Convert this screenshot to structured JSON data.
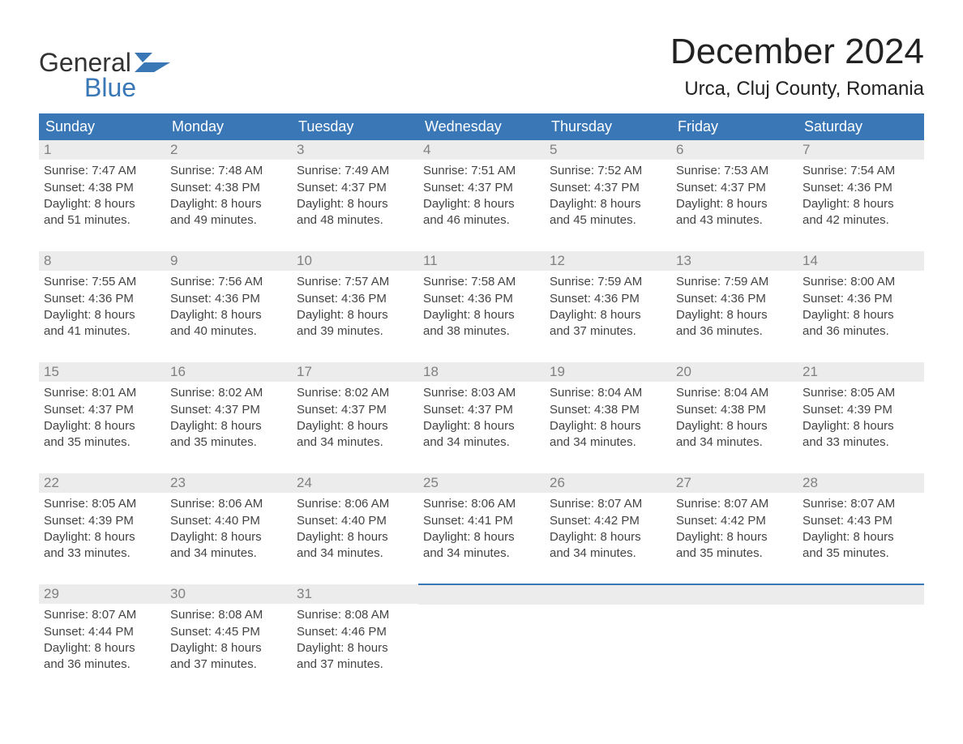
{
  "logo": {
    "word1": "General",
    "word2": "Blue",
    "icon_color": "#3a77b7"
  },
  "title": "December 2024",
  "location": "Urca, Cluj County, Romania",
  "colors": {
    "header_bg": "#3a77b7",
    "header_text": "#ffffff",
    "daynum_bg": "#ececec",
    "daynum_text": "#808080",
    "body_text": "#444444",
    "rule": "#3a77b7"
  },
  "weekdays": [
    "Sunday",
    "Monday",
    "Tuesday",
    "Wednesday",
    "Thursday",
    "Friday",
    "Saturday"
  ],
  "labels": {
    "sunrise": "Sunrise:",
    "sunset": "Sunset:",
    "daylight": "Daylight:"
  },
  "weeks": [
    [
      {
        "n": "1",
        "sr": "7:47 AM",
        "ss": "4:38 PM",
        "dl1": "8 hours",
        "dl2": "and 51 minutes."
      },
      {
        "n": "2",
        "sr": "7:48 AM",
        "ss": "4:38 PM",
        "dl1": "8 hours",
        "dl2": "and 49 minutes."
      },
      {
        "n": "3",
        "sr": "7:49 AM",
        "ss": "4:37 PM",
        "dl1": "8 hours",
        "dl2": "and 48 minutes."
      },
      {
        "n": "4",
        "sr": "7:51 AM",
        "ss": "4:37 PM",
        "dl1": "8 hours",
        "dl2": "and 46 minutes."
      },
      {
        "n": "5",
        "sr": "7:52 AM",
        "ss": "4:37 PM",
        "dl1": "8 hours",
        "dl2": "and 45 minutes."
      },
      {
        "n": "6",
        "sr": "7:53 AM",
        "ss": "4:37 PM",
        "dl1": "8 hours",
        "dl2": "and 43 minutes."
      },
      {
        "n": "7",
        "sr": "7:54 AM",
        "ss": "4:36 PM",
        "dl1": "8 hours",
        "dl2": "and 42 minutes."
      }
    ],
    [
      {
        "n": "8",
        "sr": "7:55 AM",
        "ss": "4:36 PM",
        "dl1": "8 hours",
        "dl2": "and 41 minutes."
      },
      {
        "n": "9",
        "sr": "7:56 AM",
        "ss": "4:36 PM",
        "dl1": "8 hours",
        "dl2": "and 40 minutes."
      },
      {
        "n": "10",
        "sr": "7:57 AM",
        "ss": "4:36 PM",
        "dl1": "8 hours",
        "dl2": "and 39 minutes."
      },
      {
        "n": "11",
        "sr": "7:58 AM",
        "ss": "4:36 PM",
        "dl1": "8 hours",
        "dl2": "and 38 minutes."
      },
      {
        "n": "12",
        "sr": "7:59 AM",
        "ss": "4:36 PM",
        "dl1": "8 hours",
        "dl2": "and 37 minutes."
      },
      {
        "n": "13",
        "sr": "7:59 AM",
        "ss": "4:36 PM",
        "dl1": "8 hours",
        "dl2": "and 36 minutes."
      },
      {
        "n": "14",
        "sr": "8:00 AM",
        "ss": "4:36 PM",
        "dl1": "8 hours",
        "dl2": "and 36 minutes."
      }
    ],
    [
      {
        "n": "15",
        "sr": "8:01 AM",
        "ss": "4:37 PM",
        "dl1": "8 hours",
        "dl2": "and 35 minutes."
      },
      {
        "n": "16",
        "sr": "8:02 AM",
        "ss": "4:37 PM",
        "dl1": "8 hours",
        "dl2": "and 35 minutes."
      },
      {
        "n": "17",
        "sr": "8:02 AM",
        "ss": "4:37 PM",
        "dl1": "8 hours",
        "dl2": "and 34 minutes."
      },
      {
        "n": "18",
        "sr": "8:03 AM",
        "ss": "4:37 PM",
        "dl1": "8 hours",
        "dl2": "and 34 minutes."
      },
      {
        "n": "19",
        "sr": "8:04 AM",
        "ss": "4:38 PM",
        "dl1": "8 hours",
        "dl2": "and 34 minutes."
      },
      {
        "n": "20",
        "sr": "8:04 AM",
        "ss": "4:38 PM",
        "dl1": "8 hours",
        "dl2": "and 34 minutes."
      },
      {
        "n": "21",
        "sr": "8:05 AM",
        "ss": "4:39 PM",
        "dl1": "8 hours",
        "dl2": "and 33 minutes."
      }
    ],
    [
      {
        "n": "22",
        "sr": "8:05 AM",
        "ss": "4:39 PM",
        "dl1": "8 hours",
        "dl2": "and 33 minutes."
      },
      {
        "n": "23",
        "sr": "8:06 AM",
        "ss": "4:40 PM",
        "dl1": "8 hours",
        "dl2": "and 34 minutes."
      },
      {
        "n": "24",
        "sr": "8:06 AM",
        "ss": "4:40 PM",
        "dl1": "8 hours",
        "dl2": "and 34 minutes."
      },
      {
        "n": "25",
        "sr": "8:06 AM",
        "ss": "4:41 PM",
        "dl1": "8 hours",
        "dl2": "and 34 minutes."
      },
      {
        "n": "26",
        "sr": "8:07 AM",
        "ss": "4:42 PM",
        "dl1": "8 hours",
        "dl2": "and 34 minutes."
      },
      {
        "n": "27",
        "sr": "8:07 AM",
        "ss": "4:42 PM",
        "dl1": "8 hours",
        "dl2": "and 35 minutes."
      },
      {
        "n": "28",
        "sr": "8:07 AM",
        "ss": "4:43 PM",
        "dl1": "8 hours",
        "dl2": "and 35 minutes."
      }
    ],
    [
      {
        "n": "29",
        "sr": "8:07 AM",
        "ss": "4:44 PM",
        "dl1": "8 hours",
        "dl2": "and 36 minutes."
      },
      {
        "n": "30",
        "sr": "8:08 AM",
        "ss": "4:45 PM",
        "dl1": "8 hours",
        "dl2": "and 37 minutes."
      },
      {
        "n": "31",
        "sr": "8:08 AM",
        "ss": "4:46 PM",
        "dl1": "8 hours",
        "dl2": "and 37 minutes."
      },
      null,
      null,
      null,
      null
    ]
  ]
}
